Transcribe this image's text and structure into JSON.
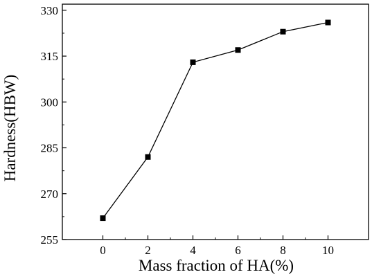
{
  "chart_data": {
    "type": "line",
    "title": "",
    "xlabel": "Mass fraction of HA(%)",
    "ylabel": "Hardness(HBW)",
    "x": [
      0,
      2,
      4,
      6,
      8,
      10
    ],
    "series": [
      {
        "values": [
          262,
          282,
          313,
          317,
          323,
          326
        ]
      }
    ],
    "xlim": [
      -1.8,
      11.8
    ],
    "ylim": [
      255,
      332
    ],
    "xticks": [
      0,
      2,
      4,
      6,
      8,
      10
    ],
    "yticks": [
      255,
      270,
      285,
      300,
      315,
      330
    ],
    "xtick_labels": [
      "0",
      "2",
      "4",
      "6",
      "8",
      "10"
    ],
    "ytick_labels": [
      "255",
      "270",
      "285",
      "300",
      "315",
      "330"
    ],
    "grid": false,
    "legend": "none",
    "marker": "square",
    "colors": {
      "line": "#000000",
      "marker": "#000000",
      "axes": "#000000"
    }
  }
}
